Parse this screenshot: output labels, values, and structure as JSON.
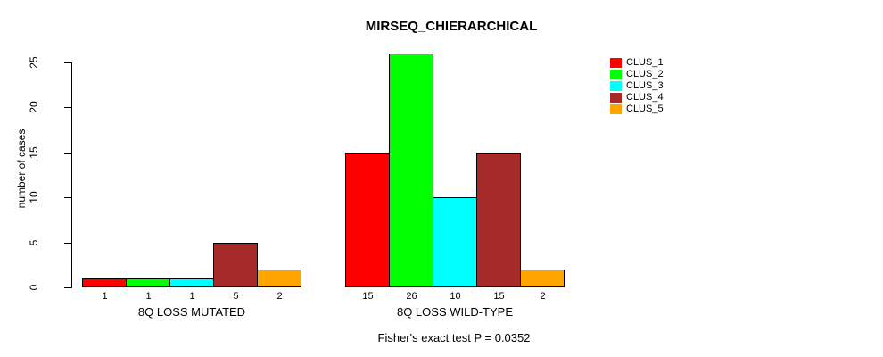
{
  "chart_data": {
    "type": "bar",
    "title": "MIRSEQ_CHIERARCHICAL",
    "ylabel": "number of cases",
    "xlabel": "",
    "annotation": "Fisher's exact test P = 0.0352",
    "yticks": [
      0,
      5,
      10,
      15,
      20,
      25
    ],
    "ylim": [
      0,
      26
    ],
    "grid": false,
    "legend_position": "right-outside-top",
    "show_values_under_bars": true,
    "categories": [
      "8Q LOSS MUTATED",
      "8Q LOSS WILD-TYPE"
    ],
    "series": [
      {
        "name": "CLUS_1",
        "color": "#FF0000",
        "values": [
          1,
          15
        ]
      },
      {
        "name": "CLUS_2",
        "color": "#00FF00",
        "values": [
          1,
          26
        ]
      },
      {
        "name": "CLUS_3",
        "color": "#00FFFF",
        "values": [
          1,
          10
        ]
      },
      {
        "name": "CLUS_4",
        "color": "#A52A2A",
        "values": [
          5,
          15
        ]
      },
      {
        "name": "CLUS_5",
        "color": "#FFA500",
        "values": [
          2,
          2
        ]
      }
    ],
    "legend": [
      {
        "label": "CLUS_1",
        "color": "#FF0000"
      },
      {
        "label": "CLUS_2",
        "color": "#00FF00"
      },
      {
        "label": "CLUS_3",
        "color": "#00FFFF"
      },
      {
        "label": "CLUS_4",
        "color": "#A52A2A"
      },
      {
        "label": "CLUS_5",
        "color": "#FFA500"
      }
    ]
  }
}
